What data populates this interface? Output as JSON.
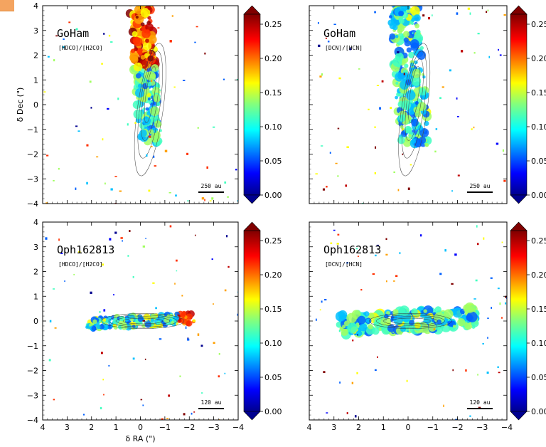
{
  "chart_data": [
    {
      "type": "heatmap",
      "source": "GoHam",
      "ratio": "[HDCO]/[H2CO]",
      "scale_bar": "250 au",
      "orientation": "vertical",
      "xlim": [
        4,
        -4
      ],
      "ylim": [
        -4,
        4
      ],
      "xticks": [
        4,
        3,
        2,
        1,
        0,
        -1,
        -2,
        -3,
        -4
      ],
      "yticks": [
        -4,
        -3,
        -2,
        -1,
        0,
        1,
        2,
        3,
        4
      ],
      "ylabel": "δ Dec (\")",
      "xlabel": "",
      "colorbar": {
        "range": [
          0,
          0.25
        ],
        "ticks": [
          "0.00",
          "0.05",
          "0.10",
          "0.15",
          "0.20",
          "0.25"
        ],
        "colormap": "jet"
      }
    },
    {
      "type": "heatmap",
      "source": "GoHam",
      "ratio": "[DCN]/[HCN]",
      "scale_bar": "250 au",
      "orientation": "vertical",
      "xlim": [
        4,
        -4
      ],
      "ylim": [
        -4,
        4
      ],
      "xticks": [
        4,
        3,
        2,
        1,
        0,
        -1,
        -2,
        -3,
        -4
      ],
      "yticks": [
        -4,
        -3,
        -2,
        -1,
        0,
        1,
        2,
        3,
        4
      ],
      "ylabel": "",
      "xlabel": "",
      "colorbar": {
        "range": [
          0,
          0.25
        ],
        "ticks": [
          "0.00",
          "0.05",
          "0.10",
          "0.15",
          "0.20",
          "0.25"
        ],
        "colormap": "jet"
      }
    },
    {
      "type": "heatmap",
      "source": "Oph162813",
      "ratio": "[HDCO]/[H2CO]",
      "scale_bar": "120 au",
      "orientation": "horizontal",
      "xlim": [
        4,
        -4
      ],
      "ylim": [
        -4,
        4
      ],
      "xticks": [
        4,
        3,
        2,
        1,
        0,
        -1,
        -2,
        -3,
        -4
      ],
      "yticks": [
        -4,
        -3,
        -2,
        -1,
        0,
        1,
        2,
        3,
        4
      ],
      "ylabel": "",
      "xlabel": "δ RA (\")",
      "colorbar": {
        "range": [
          0,
          0.25
        ],
        "ticks": [
          "0.00",
          "0.05",
          "0.10",
          "0.15",
          "0.20",
          "0.25"
        ],
        "colormap": "jet"
      }
    },
    {
      "type": "heatmap",
      "source": "Oph162813",
      "ratio": "[DCN]/[HCN]",
      "scale_bar": "120 au",
      "orientation": "horizontal",
      "xlim": [
        4,
        -4
      ],
      "ylim": [
        -4,
        4
      ],
      "xticks": [
        4,
        3,
        2,
        1,
        0,
        -1,
        -2,
        -3,
        -4
      ],
      "yticks": [
        -4,
        -3,
        -2,
        -1,
        0,
        1,
        2,
        3,
        4
      ],
      "ylabel": "",
      "xlabel": "",
      "colorbar": {
        "range": [
          0,
          0.25
        ],
        "ticks": [
          "0.00",
          "0.05",
          "0.10",
          "0.15",
          "0.20",
          "0.25"
        ],
        "colormap": "jet"
      }
    }
  ]
}
